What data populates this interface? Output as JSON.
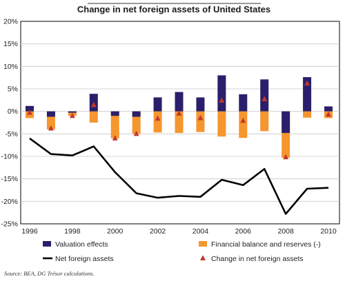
{
  "chart_data": {
    "type": "bar",
    "title": "Change in net foreign assets of United States",
    "source": "Source: BEA, DG Trésor calculations.",
    "x": [
      1996,
      1997,
      1998,
      1999,
      2000,
      2001,
      2002,
      2003,
      2004,
      2005,
      2006,
      2007,
      2008,
      2009,
      2010
    ],
    "x_tick_labels": [
      "1996",
      "1998",
      "2000",
      "2002",
      "2004",
      "2006",
      "2008",
      "2010"
    ],
    "y_tick_labels": [
      "-25%",
      "-20%",
      "-15%",
      "-10%",
      "-5%",
      "0%",
      "5%",
      "10%",
      "15%",
      "20%"
    ],
    "ylim": [
      -25,
      20
    ],
    "yunit": "%",
    "grid": "horizontal",
    "legend_position": "bottom",
    "series": [
      {
        "name": "Valuation effects",
        "kind": "bar",
        "color": "#2b1f6b",
        "values": [
          1.2,
          -1.2,
          -0.3,
          3.9,
          -1.0,
          -1.2,
          3.1,
          4.3,
          3.1,
          8.0,
          3.8,
          7.1,
          -4.8,
          7.6,
          1.1
        ]
      },
      {
        "name": "Financial balance and reserves (-)",
        "kind": "bar",
        "color": "#f5962e",
        "values": [
          -1.5,
          -4.0,
          -1.0,
          -2.5,
          -6.0,
          -5.0,
          -4.7,
          -4.8,
          -4.6,
          -5.6,
          -5.9,
          -4.4,
          -10.3,
          -1.4,
          -1.5
        ]
      },
      {
        "name": "Net foreign assets",
        "kind": "line",
        "color": "#000000",
        "values": [
          -6.0,
          -9.5,
          -9.8,
          -7.8,
          -13.5,
          -18.2,
          -19.2,
          -18.8,
          -19.0,
          -15.2,
          -16.4,
          -12.8,
          -22.8,
          -17.2,
          -17.0
        ]
      },
      {
        "name": "Change in net foreign assets",
        "kind": "marker",
        "color": "#c0392b",
        "values": [
          -0.3,
          -3.8,
          -1.0,
          1.4,
          -6.0,
          -5.0,
          -1.6,
          -0.5,
          -1.5,
          2.4,
          -2.1,
          2.7,
          -10.2,
          6.2,
          -0.7
        ]
      }
    ]
  }
}
